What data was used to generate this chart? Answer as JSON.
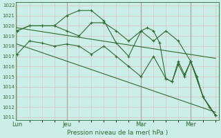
{
  "background_color": "#cceee8",
  "grid_color_major": "#ddbbbb",
  "grid_color_minor": "#ddbbbb",
  "line_color": "#2d6a2d",
  "vline_color": "#556655",
  "xlabel": "Pression niveau de la mer( hPa )",
  "ylim": [
    1011,
    1022
  ],
  "yticks": [
    1011,
    1012,
    1013,
    1014,
    1015,
    1016,
    1017,
    1018,
    1019,
    1020,
    1021,
    1022
  ],
  "day_labels": [
    "Lun",
    "Jeu",
    "Mar",
    "Mer"
  ],
  "day_positions": [
    0,
    8,
    20,
    28
  ],
  "vline_positions": [
    8,
    20,
    28
  ],
  "xlim_min": -0.2,
  "xlim_max": 32.5,
  "trend1_x": [
    0,
    32
  ],
  "trend1_y": [
    1019.8,
    1016.8
  ],
  "trend2_x": [
    0,
    32
  ],
  "trend2_y": [
    1018.2,
    1011.5
  ],
  "series_jagged": {
    "x": [
      0,
      2,
      4,
      6,
      8,
      10,
      12,
      14,
      16,
      18,
      20,
      21,
      22,
      23,
      24,
      25,
      26,
      27,
      28,
      29,
      30,
      31,
      32
    ],
    "y": [
      1019.5,
      1020.0,
      1020.0,
      1020.0,
      1021.0,
      1021.5,
      1021.5,
      1020.5,
      1018.3,
      1017.0,
      1019.5,
      1019.8,
      1019.5,
      1018.3,
      1014.8,
      1014.5,
      1016.5,
      1015.2,
      1016.5,
      1015.0,
      1013.0,
      1012.0,
      1011.2
    ]
  },
  "series_smooth": {
    "x": [
      0,
      2,
      4,
      6,
      8,
      10,
      12,
      14,
      16,
      18,
      20,
      22,
      24,
      26,
      28,
      30,
      32
    ],
    "y": [
      1019.5,
      1020.0,
      1020.0,
      1020.0,
      1019.5,
      1019.0,
      1020.3,
      1020.3,
      1019.5,
      1018.5,
      1019.5,
      1018.5,
      1019.5,
      1018.5,
      1016.5,
      1013.0,
      1011.2
    ]
  },
  "series_lower": {
    "x": [
      0,
      2,
      4,
      6,
      8,
      10,
      12,
      14,
      16,
      18,
      20,
      22,
      24,
      25,
      26,
      27,
      28,
      30,
      32
    ],
    "y": [
      1017.2,
      1018.5,
      1018.3,
      1018.0,
      1018.2,
      1018.0,
      1017.2,
      1018.0,
      1017.0,
      1016.0,
      1015.0,
      1017.0,
      1014.8,
      1014.5,
      1016.2,
      1015.0,
      1016.5,
      1013.0,
      1011.2
    ]
  }
}
